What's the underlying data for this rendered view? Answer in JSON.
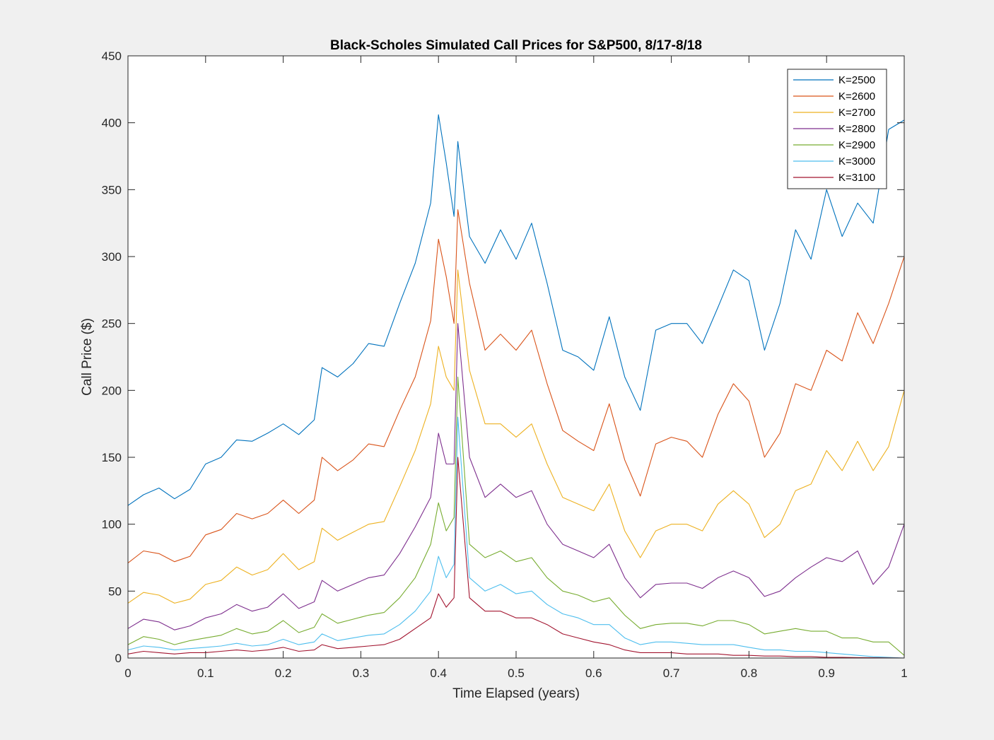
{
  "chart_data": {
    "type": "line",
    "title": "Black-Scholes Simulated Call Prices for S&P500, 8/17-8/18",
    "xlabel": "Time Elapsed (years)",
    "ylabel": "Call Price ($)",
    "xlim": [
      0,
      1
    ],
    "ylim": [
      0,
      450
    ],
    "xticks": [
      "0",
      "0.1",
      "0.2",
      "0.3",
      "0.4",
      "0.5",
      "0.6",
      "0.7",
      "0.8",
      "0.9",
      "1"
    ],
    "yticks": [
      "0",
      "50",
      "100",
      "150",
      "200",
      "250",
      "300",
      "350",
      "400",
      "450"
    ],
    "grid": false,
    "legend_position": "top-right",
    "x": [
      0,
      0.02,
      0.04,
      0.06,
      0.08,
      0.1,
      0.12,
      0.14,
      0.16,
      0.18,
      0.2,
      0.22,
      0.24,
      0.25,
      0.27,
      0.29,
      0.31,
      0.33,
      0.35,
      0.37,
      0.39,
      0.4,
      0.41,
      0.42,
      0.425,
      0.44,
      0.46,
      0.48,
      0.5,
      0.52,
      0.54,
      0.56,
      0.58,
      0.6,
      0.62,
      0.64,
      0.66,
      0.68,
      0.7,
      0.72,
      0.74,
      0.76,
      0.78,
      0.8,
      0.82,
      0.84,
      0.86,
      0.88,
      0.9,
      0.92,
      0.94,
      0.96,
      0.98,
      1.0
    ],
    "series": [
      {
        "name": "K=2500",
        "color": "#0072BD",
        "values": [
          114,
          122,
          127,
          119,
          126,
          145,
          150,
          163,
          162,
          168,
          175,
          167,
          178,
          217,
          210,
          220,
          235,
          233,
          265,
          295,
          340,
          406,
          370,
          330,
          386,
          315,
          295,
          320,
          298,
          325,
          280,
          230,
          225,
          215,
          255,
          210,
          185,
          245,
          250,
          250,
          235,
          262,
          290,
          282,
          230,
          265,
          320,
          298,
          350,
          315,
          340,
          325,
          395,
          402
        ]
      },
      {
        "name": "K=2600",
        "color": "#D95319",
        "values": [
          71,
          80,
          78,
          72,
          76,
          92,
          96,
          108,
          104,
          108,
          118,
          108,
          118,
          150,
          140,
          148,
          160,
          158,
          185,
          210,
          252,
          313,
          285,
          250,
          335,
          280,
          230,
          242,
          230,
          245,
          205,
          170,
          162,
          155,
          190,
          148,
          121,
          160,
          165,
          162,
          150,
          182,
          205,
          192,
          150,
          168,
          205,
          200,
          230,
          222,
          258,
          235,
          265,
          300
        ]
      },
      {
        "name": "K=2700",
        "color": "#EDB120",
        "values": [
          41,
          49,
          47,
          41,
          44,
          55,
          58,
          68,
          62,
          66,
          78,
          66,
          72,
          97,
          88,
          94,
          100,
          102,
          128,
          155,
          190,
          233,
          210,
          200,
          290,
          215,
          175,
          175,
          165,
          175,
          145,
          120,
          115,
          110,
          130,
          95,
          75,
          95,
          100,
          100,
          95,
          115,
          125,
          115,
          90,
          100,
          125,
          130,
          155,
          140,
          162,
          140,
          158,
          200
        ]
      },
      {
        "name": "K=2800",
        "color": "#7E2F8E",
        "values": [
          22,
          29,
          27,
          21,
          24,
          30,
          33,
          40,
          35,
          38,
          48,
          37,
          42,
          58,
          50,
          55,
          60,
          62,
          78,
          98,
          120,
          168,
          145,
          145,
          250,
          150,
          120,
          130,
          120,
          125,
          100,
          85,
          80,
          75,
          85,
          60,
          45,
          55,
          56,
          56,
          52,
          60,
          65,
          60,
          46,
          50,
          60,
          68,
          75,
          72,
          80,
          55,
          68,
          100
        ]
      },
      {
        "name": "K=2900",
        "color": "#77AC30",
        "values": [
          10,
          16,
          14,
          10,
          13,
          15,
          17,
          22,
          18,
          20,
          28,
          19,
          23,
          33,
          26,
          29,
          32,
          34,
          45,
          60,
          85,
          116,
          95,
          105,
          210,
          85,
          75,
          80,
          72,
          75,
          60,
          50,
          47,
          42,
          45,
          32,
          22,
          25,
          26,
          26,
          24,
          28,
          28,
          25,
          18,
          20,
          22,
          20,
          20,
          15,
          15,
          12,
          12,
          2
        ]
      },
      {
        "name": "K=3000",
        "color": "#4DBEEE",
        "values": [
          6,
          9,
          8,
          6,
          7,
          8,
          9,
          11,
          9,
          10,
          14,
          10,
          12,
          18,
          13,
          15,
          17,
          18,
          25,
          35,
          50,
          76,
          60,
          70,
          180,
          60,
          50,
          55,
          48,
          50,
          40,
          33,
          30,
          25,
          25,
          15,
          10,
          12,
          12,
          11,
          10,
          10,
          10,
          8,
          6,
          6,
          5,
          5,
          4,
          3,
          2,
          1,
          0.5,
          0
        ]
      },
      {
        "name": "K=3100",
        "color": "#A2142F",
        "values": [
          3,
          5,
          4,
          3,
          4,
          4,
          5,
          6,
          5,
          6,
          8,
          5,
          6,
          10,
          7,
          8,
          9,
          10,
          14,
          22,
          30,
          48,
          38,
          45,
          150,
          45,
          35,
          35,
          30,
          30,
          25,
          18,
          15,
          12,
          10,
          6,
          4,
          4,
          4,
          3,
          3,
          3,
          2,
          2,
          1.5,
          1.5,
          1,
          1,
          0.5,
          0.5,
          0.3,
          0.2,
          0.1,
          0
        ]
      }
    ]
  }
}
